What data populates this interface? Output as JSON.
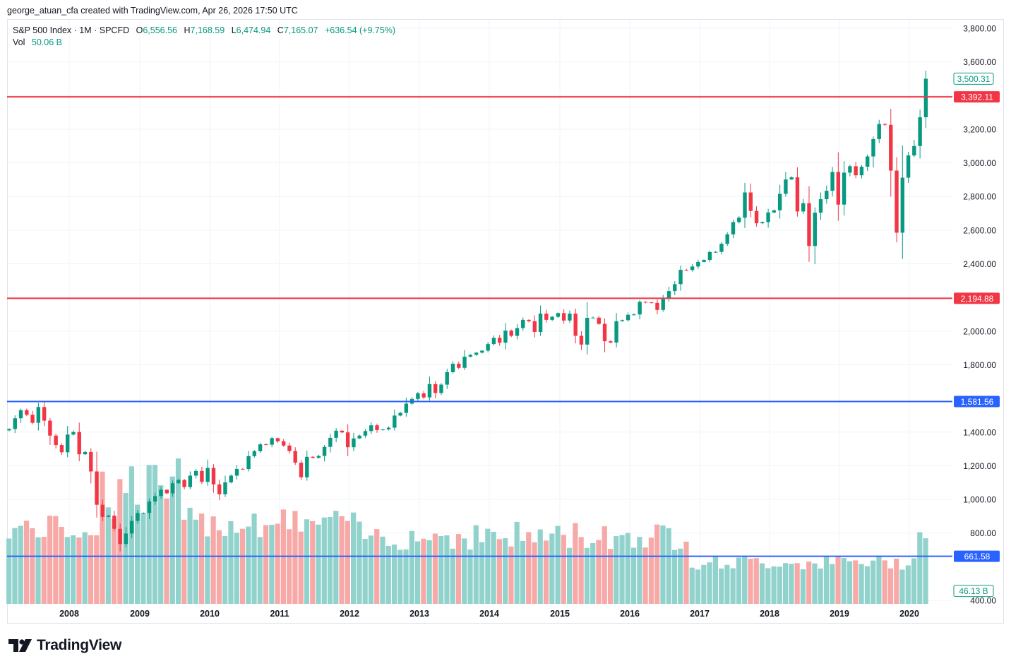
{
  "header": {
    "attribution": "george_atuan_cfa created with TradingView.com, Apr 26, 2026 17:50 UTC"
  },
  "legend": {
    "symbol": "S&P 500 Index · 1M · SPCFD",
    "open_label": "O",
    "open": "6,556.56",
    "high_label": "H",
    "high": "7,168.59",
    "low_label": "L",
    "low": "6,474.94",
    "close_label": "C",
    "close": "7,165.07",
    "change": "+636.54 (+9.75%)",
    "vol_label": "Vol",
    "vol_value": "50.06 B"
  },
  "branding": {
    "name": "TradingView"
  },
  "colors": {
    "up": "#089981",
    "down": "#f23645",
    "vol_up": "#92d2cc",
    "vol_down": "#f7a9a7",
    "red_line": "#f23645",
    "blue_line": "#2962ff",
    "grid": "#f0f3fa",
    "axis_text": "#131722"
  },
  "chart_data": {
    "type": "candlestick",
    "interval": "1M",
    "y_axis": {
      "range": [
        400,
        3850
      ],
      "ticks": [
        400,
        800,
        1000,
        1200,
        1400,
        1800,
        2000,
        2200,
        2400,
        2600,
        2800,
        3000,
        3200,
        3400,
        3600,
        3800
      ],
      "tick_labels": [
        "400.00",
        "800.00",
        "1,000.00",
        "1,200.00",
        "1,400.00",
        "1,800.00",
        "2,000.00",
        "",
        "2,400.00",
        "2,600.00",
        "2,800.00",
        "3,000.00",
        "3,200.00",
        "",
        "3,600.00",
        "3,800.00"
      ]
    },
    "x_axis": {
      "labels": [
        "2008",
        "2009",
        "2010",
        "2011",
        "2012",
        "2013",
        "2014",
        "2015",
        "2016",
        "2017",
        "2018",
        "2019",
        "2020"
      ]
    },
    "horizontal_lines": [
      {
        "value": 3392.11,
        "label": "3,392.11",
        "color": "red"
      },
      {
        "value": 2194.88,
        "label": "2,194.88",
        "color": "red"
      },
      {
        "value": 1581.56,
        "label": "1,581.56",
        "color": "blue"
      },
      {
        "value": 661.58,
        "label": "661.58",
        "color": "blue"
      }
    ],
    "price_badges": [
      {
        "value": 3500.31,
        "label": "3,500.31"
      },
      {
        "value": 456,
        "label": "46.13 B"
      }
    ],
    "series_close": [
      1418,
      1482,
      1530,
      1503,
      1455,
      1549,
      1468,
      1379,
      1323,
      1280,
      1385,
      1400,
      1268,
      1282,
      1166,
      968,
      896,
      903,
      825,
      735,
      797,
      872,
      919,
      919,
      987,
      1020,
      1057,
      1036,
      1096,
      1115,
      1073,
      1141,
      1169,
      1104,
      1187,
      1089,
      1030,
      1101,
      1141,
      1181,
      1180,
      1257,
      1286,
      1327,
      1325,
      1364,
      1345,
      1320,
      1287,
      1218,
      1131,
      1253,
      1247,
      1258,
      1312,
      1366,
      1408,
      1398,
      1310,
      1362,
      1379,
      1406,
      1440,
      1412,
      1416,
      1426,
      1498,
      1514,
      1569,
      1597,
      1630,
      1606,
      1685,
      1632,
      1682,
      1756,
      1806,
      1782,
      1848,
      1859,
      1872,
      1884,
      1923,
      1960,
      1931,
      2003,
      1972,
      2018,
      2067,
      2059,
      1995,
      2104,
      2067,
      2085,
      2107,
      2063,
      2104,
      1972,
      1920,
      2079,
      2080,
      2043,
      1940,
      1932,
      2059,
      2065,
      2097,
      2099,
      2174,
      2171,
      2168,
      2126,
      2198,
      2238,
      2279,
      2364,
      2363,
      2384,
      2411,
      2423,
      2470,
      2471,
      2519,
      2575,
      2648,
      2674,
      2824,
      2714,
      2641,
      2648,
      2705,
      2718,
      2816,
      2901,
      2914,
      2711,
      2760,
      2506,
      2704,
      2784,
      2834,
      2946,
      2752,
      2942,
      2980,
      2926,
      2977,
      3038,
      3141,
      3231,
      3226,
      2954,
      2585,
      2912,
      3044,
      3100,
      3271,
      3500
    ]
  }
}
